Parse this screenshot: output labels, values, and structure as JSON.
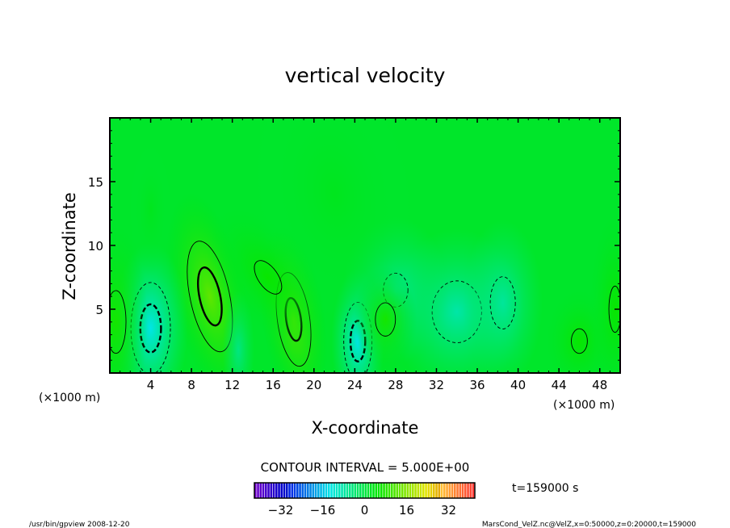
{
  "chart_data": {
    "type": "heatmap",
    "title": "vertical velocity",
    "xlabel": "X-coordinate",
    "ylabel": "Z-coordinate",
    "x_unit_label_left": "(×1000 m)",
    "x_unit_label_right": "(×1000 m)",
    "xlim": [
      0,
      50
    ],
    "ylim": [
      0,
      20
    ],
    "xticks": [
      4,
      8,
      12,
      16,
      20,
      24,
      28,
      32,
      36,
      40,
      44,
      48
    ],
    "yticks": [
      5,
      10,
      15
    ],
    "contour_interval_label": "CONTOUR INTERVAL = 5.000E+00",
    "contour_interval": 5,
    "colorbar": {
      "range": [
        -42,
        42
      ],
      "ticks": [
        -32,
        -16,
        0,
        16,
        32
      ]
    },
    "time_label": "t=159000 s",
    "features": [
      {
        "x": 9.8,
        "z": 6.0,
        "value": 13,
        "sx": 1.4,
        "sz": 3.2
      },
      {
        "x": 18.0,
        "z": 4.2,
        "value": 12,
        "sx": 1.2,
        "sz": 2.8
      },
      {
        "x": 15.5,
        "z": 7.5,
        "value": 6,
        "sx": 1.6,
        "sz": 2.5
      },
      {
        "x": 4.0,
        "z": 3.5,
        "value": -13,
        "sx": 1.4,
        "sz": 2.6
      },
      {
        "x": 24.3,
        "z": 2.5,
        "value": -13,
        "sx": 1.0,
        "sz": 2.2
      },
      {
        "x": 34.0,
        "z": 4.8,
        "value": -8,
        "sx": 2.5,
        "sz": 2.5
      },
      {
        "x": 38.5,
        "z": 5.5,
        "value": -7,
        "sx": 1.5,
        "sz": 2.5
      },
      {
        "x": 28.0,
        "z": 6.5,
        "value": -6,
        "sx": 2.0,
        "sz": 2.2
      },
      {
        "x": 27.0,
        "z": 4.2,
        "value": 7,
        "sx": 1.2,
        "sz": 1.6
      },
      {
        "x": 0.6,
        "z": 4.0,
        "value": 7,
        "sx": 1.2,
        "sz": 3.0
      },
      {
        "x": 46.0,
        "z": 2.5,
        "value": 6,
        "sx": 1.3,
        "sz": 1.6
      },
      {
        "x": 49.5,
        "z": 5.0,
        "value": 6,
        "sx": 1.0,
        "sz": 3.0
      },
      {
        "x": 12.6,
        "z": 1.8,
        "value": -5,
        "sx": 0.6,
        "sz": 1.8
      },
      {
        "x": 4.0,
        "z": 12.8,
        "value": 3,
        "sx": 0.8,
        "sz": 2.0
      },
      {
        "x": 22.0,
        "z": 14.0,
        "value": 3,
        "sx": 3.0,
        "sz": 4.0
      }
    ]
  },
  "footer": {
    "left": "/usr/bin/gpview   2008-12-20",
    "right": "MarsCond_VelZ.nc@VelZ,x=0:50000,z=0:20000,t=159000"
  }
}
